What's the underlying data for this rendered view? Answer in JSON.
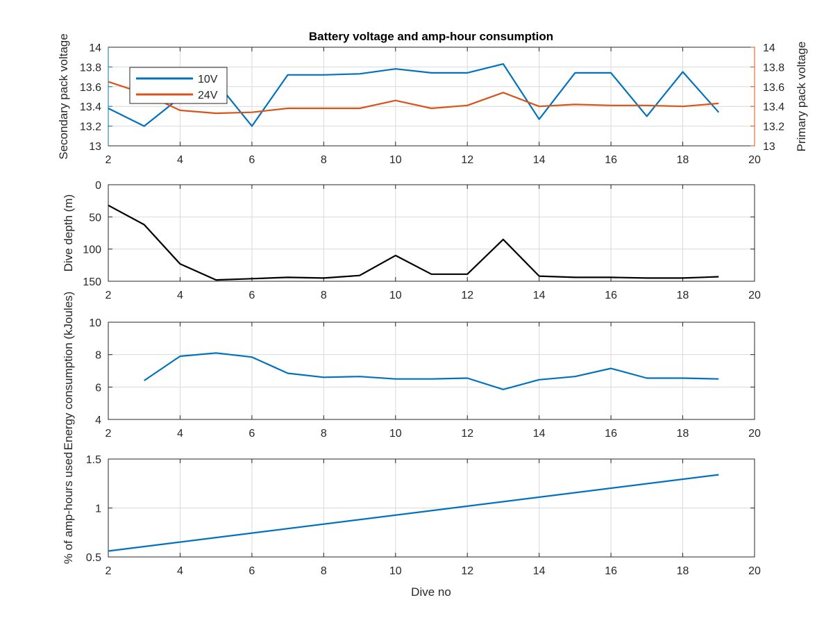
{
  "figure": {
    "title": "Battery voltage and amp-hour consumption",
    "xlabel": "Dive no"
  },
  "chart_data": [
    {
      "type": "line",
      "x": [
        2,
        3,
        4,
        5,
        6,
        7,
        8,
        9,
        10,
        11,
        12,
        13,
        14,
        15,
        16,
        17,
        18,
        19
      ],
      "xlim": [
        2,
        20
      ],
      "xticks": [
        2,
        4,
        6,
        8,
        10,
        12,
        14,
        16,
        18,
        20
      ],
      "ylabel": "Secondary pack voltage",
      "ylim": [
        13,
        14
      ],
      "yticks": [
        "13",
        "13.2",
        "13.4",
        "13.6",
        "13.8",
        "14"
      ],
      "y2label": "Primary pack voltage",
      "y2lim": [
        13,
        14
      ],
      "y2ticks": [
        "13",
        "13.2",
        "13.4",
        "13.6",
        "13.8",
        "14"
      ],
      "grid": true,
      "legend_position": "top-left",
      "series": [
        {
          "name": "10V",
          "axis": "left",
          "color": "#0072bd",
          "values": [
            13.38,
            13.2,
            13.49,
            13.65,
            13.2,
            13.72,
            13.72,
            13.73,
            13.78,
            13.74,
            13.74,
            13.83,
            13.27,
            13.74,
            13.74,
            13.3,
            13.75,
            13.34
          ]
        },
        {
          "name": "24V",
          "axis": "right",
          "color": "#d95319",
          "values": [
            13.65,
            13.53,
            13.36,
            13.33,
            13.34,
            13.38,
            13.38,
            13.38,
            13.46,
            13.38,
            13.41,
            13.54,
            13.4,
            13.42,
            13.41,
            13.41,
            13.4,
            13.43
          ]
        }
      ]
    },
    {
      "type": "line",
      "x": [
        2,
        3,
        4,
        5,
        6,
        7,
        8,
        9,
        10,
        11,
        12,
        13,
        14,
        15,
        16,
        17,
        18,
        19
      ],
      "xlim": [
        2,
        20
      ],
      "xticks": [
        2,
        4,
        6,
        8,
        10,
        12,
        14,
        16,
        18,
        20
      ],
      "ylabel": "Dive depth (m)",
      "ylim": [
        0,
        150
      ],
      "y_reversed": true,
      "yticks": [
        "0",
        "50",
        "100",
        "150"
      ],
      "grid": true,
      "series": [
        {
          "color": "#000000",
          "values": [
            32,
            62,
            123,
            148,
            146,
            144,
            145,
            141,
            110,
            139,
            139,
            85,
            142,
            144,
            144,
            145,
            145,
            143
          ]
        }
      ]
    },
    {
      "type": "line",
      "x": [
        3,
        4,
        5,
        6,
        7,
        8,
        9,
        10,
        11,
        12,
        13,
        14,
        15,
        16,
        17,
        18,
        19
      ],
      "xlim": [
        2,
        20
      ],
      "xticks": [
        2,
        4,
        6,
        8,
        10,
        12,
        14,
        16,
        18,
        20
      ],
      "ylabel": "Energy consumption (kJoules)",
      "ylim": [
        4,
        10
      ],
      "yticks": [
        "4",
        "6",
        "8",
        "10"
      ],
      "grid": true,
      "series": [
        {
          "color": "#0072bd",
          "values": [
            6.4,
            7.9,
            8.1,
            7.85,
            6.85,
            6.6,
            6.65,
            6.5,
            6.5,
            6.55,
            5.85,
            6.45,
            6.65,
            7.15,
            6.55,
            6.55,
            6.5
          ]
        }
      ]
    },
    {
      "type": "line",
      "x": [
        2,
        19
      ],
      "xlim": [
        2,
        20
      ],
      "xticks": [
        2,
        4,
        6,
        8,
        10,
        12,
        14,
        16,
        18,
        20
      ],
      "ylabel": "% of amp-hours used",
      "ylim": [
        0.5,
        1.5
      ],
      "yticks": [
        "0.5",
        "1",
        "1.5"
      ],
      "grid": true,
      "series": [
        {
          "color": "#0072bd",
          "values": [
            0.56,
            1.34
          ]
        }
      ]
    }
  ]
}
